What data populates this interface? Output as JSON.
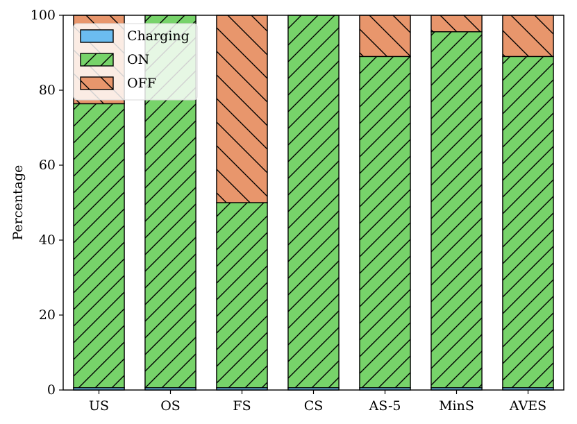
{
  "chart_data": {
    "type": "bar",
    "stacked": true,
    "title": "",
    "xlabel": "",
    "ylabel": "Percentage",
    "ylim": [
      0,
      100
    ],
    "yticks": [
      0,
      20,
      40,
      60,
      80,
      100
    ],
    "grid": false,
    "legend_position": "top-left",
    "categories": [
      "US",
      "OS",
      "FS",
      "CS",
      "AS-5",
      "MinS",
      "AVES"
    ],
    "series": [
      {
        "name": "Charging",
        "color": "#6bbcf0",
        "hatch": "none",
        "values": [
          0.6,
          0.6,
          0.6,
          0.6,
          0.6,
          0.6,
          0.6
        ]
      },
      {
        "name": "ON",
        "color": "#77d36a",
        "hatch": "forward-diagonal",
        "values": [
          75.8,
          99.4,
          49.4,
          99.4,
          88.4,
          95.0,
          88.4
        ]
      },
      {
        "name": "OFF",
        "color": "#e8966c",
        "hatch": "backward-diagonal",
        "values": [
          23.6,
          0.0,
          50.0,
          0.0,
          11.0,
          4.4,
          11.0
        ]
      }
    ]
  }
}
